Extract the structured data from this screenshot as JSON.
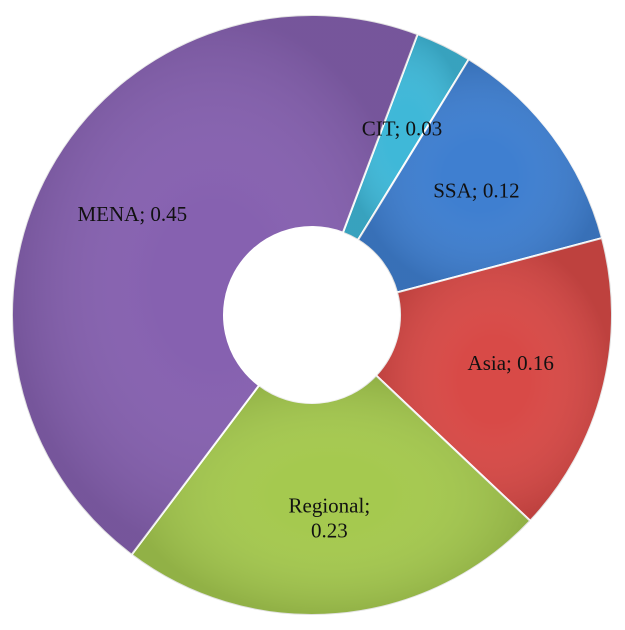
{
  "chart_data": {
    "type": "donut",
    "categories": [
      "CIT",
      "SSA",
      "Asia",
      "Regional",
      "MENA"
    ],
    "values": [
      0.03,
      0.12,
      0.16,
      0.23,
      0.45
    ],
    "value_labels": [
      "CIT; 0.03",
      "SSA; 0.12",
      "Asia; 0.16",
      "Regional; 0.23",
      "MENA; 0.45"
    ],
    "colors": [
      "#3fb8d8",
      "#3f7fd0",
      "#d84a47",
      "#a5c94f",
      "#8661b0"
    ]
  }
}
